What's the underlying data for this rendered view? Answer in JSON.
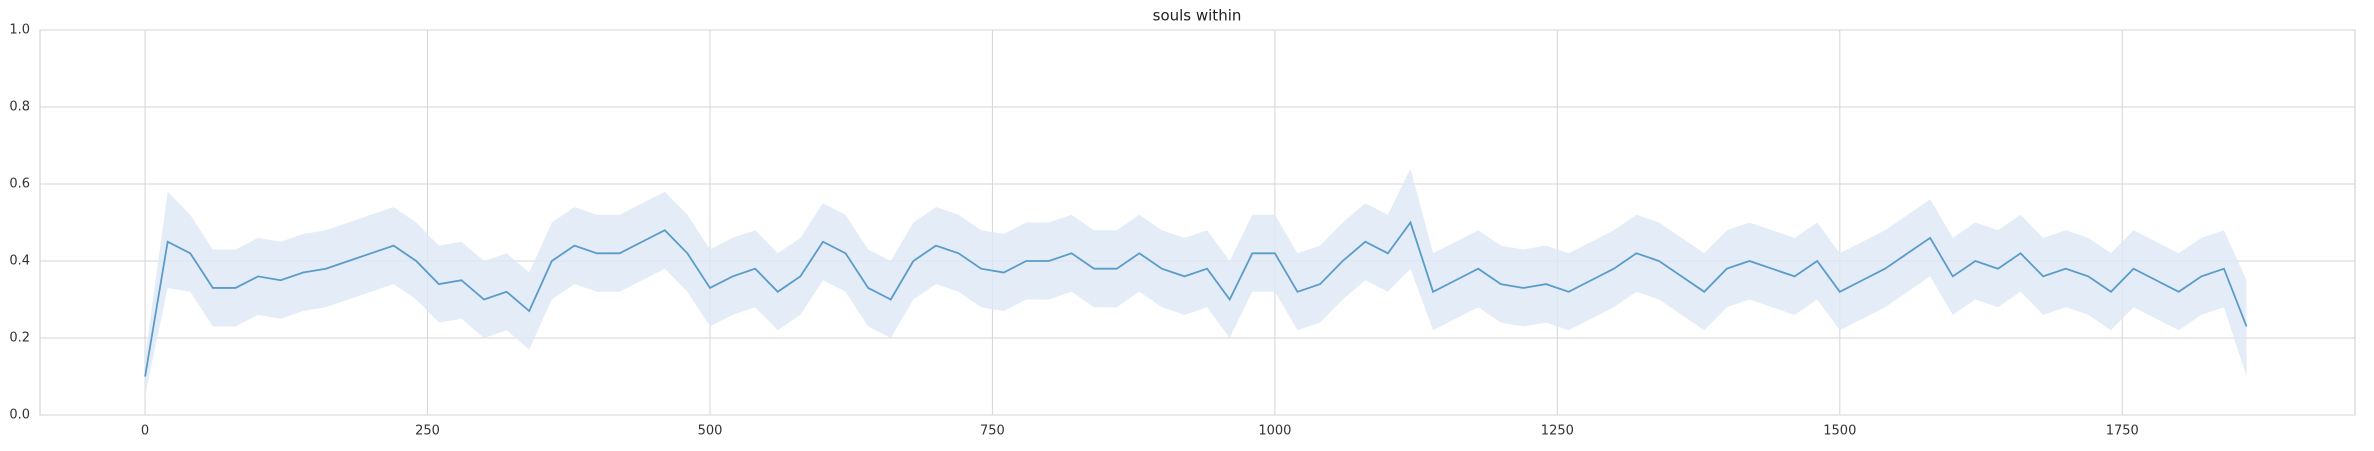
{
  "chart_data": {
    "type": "line",
    "title": "souls within",
    "x": [
      0,
      20,
      40,
      60,
      80,
      100,
      120,
      140,
      160,
      180,
      200,
      220,
      240,
      260,
      280,
      300,
      320,
      340,
      360,
      380,
      400,
      420,
      440,
      460,
      480,
      500,
      520,
      540,
      560,
      580,
      600,
      620,
      640,
      660,
      680,
      700,
      720,
      740,
      760,
      780,
      800,
      820,
      840,
      860,
      880,
      900,
      920,
      940,
      960,
      980,
      1000,
      1020,
      1040,
      1060,
      1080,
      1100,
      1120,
      1140,
      1160,
      1180,
      1200,
      1220,
      1240,
      1260,
      1280,
      1300,
      1320,
      1340,
      1360,
      1380,
      1400,
      1420,
      1440,
      1460,
      1480,
      1500,
      1520,
      1540,
      1560,
      1580,
      1600,
      1620,
      1640,
      1660,
      1680,
      1700,
      1720,
      1740,
      1760,
      1780,
      1800,
      1820,
      1840,
      1860
    ],
    "values": [
      0.1,
      0.45,
      0.42,
      0.33,
      0.33,
      0.36,
      0.35,
      0.37,
      0.38,
      0.4,
      0.42,
      0.44,
      0.4,
      0.34,
      0.35,
      0.3,
      0.32,
      0.27,
      0.4,
      0.44,
      0.42,
      0.42,
      0.45,
      0.48,
      0.42,
      0.33,
      0.36,
      0.38,
      0.32,
      0.36,
      0.45,
      0.42,
      0.33,
      0.3,
      0.4,
      0.44,
      0.42,
      0.38,
      0.37,
      0.4,
      0.4,
      0.42,
      0.38,
      0.38,
      0.42,
      0.38,
      0.36,
      0.38,
      0.3,
      0.42,
      0.42,
      0.32,
      0.34,
      0.4,
      0.45,
      0.42,
      0.5,
      0.32,
      0.35,
      0.38,
      0.34,
      0.33,
      0.34,
      0.32,
      0.35,
      0.38,
      0.42,
      0.4,
      0.36,
      0.32,
      0.38,
      0.4,
      0.38,
      0.36,
      0.4,
      0.32,
      0.35,
      0.38,
      0.42,
      0.46,
      0.36,
      0.4,
      0.38,
      0.42,
      0.36,
      0.38,
      0.36,
      0.32,
      0.38,
      0.35,
      0.32,
      0.36,
      0.38,
      0.23
    ],
    "lower": [
      0.05,
      0.33,
      0.32,
      0.23,
      0.23,
      0.26,
      0.25,
      0.27,
      0.28,
      0.3,
      0.32,
      0.34,
      0.3,
      0.24,
      0.25,
      0.2,
      0.22,
      0.17,
      0.3,
      0.34,
      0.32,
      0.32,
      0.35,
      0.38,
      0.32,
      0.23,
      0.26,
      0.28,
      0.22,
      0.26,
      0.35,
      0.32,
      0.23,
      0.2,
      0.3,
      0.34,
      0.32,
      0.28,
      0.27,
      0.3,
      0.3,
      0.32,
      0.28,
      0.28,
      0.32,
      0.28,
      0.26,
      0.28,
      0.2,
      0.32,
      0.32,
      0.22,
      0.24,
      0.3,
      0.35,
      0.32,
      0.38,
      0.22,
      0.25,
      0.28,
      0.24,
      0.23,
      0.24,
      0.22,
      0.25,
      0.28,
      0.32,
      0.3,
      0.26,
      0.22,
      0.28,
      0.3,
      0.28,
      0.26,
      0.3,
      0.22,
      0.25,
      0.28,
      0.32,
      0.36,
      0.26,
      0.3,
      0.28,
      0.32,
      0.26,
      0.28,
      0.26,
      0.22,
      0.28,
      0.25,
      0.22,
      0.26,
      0.28,
      0.1
    ],
    "upper": [
      0.15,
      0.58,
      0.52,
      0.43,
      0.43,
      0.46,
      0.45,
      0.47,
      0.48,
      0.5,
      0.52,
      0.54,
      0.5,
      0.44,
      0.45,
      0.4,
      0.42,
      0.37,
      0.5,
      0.54,
      0.52,
      0.52,
      0.55,
      0.58,
      0.52,
      0.43,
      0.46,
      0.48,
      0.42,
      0.46,
      0.55,
      0.52,
      0.43,
      0.4,
      0.5,
      0.54,
      0.52,
      0.48,
      0.47,
      0.5,
      0.5,
      0.52,
      0.48,
      0.48,
      0.52,
      0.48,
      0.46,
      0.48,
      0.4,
      0.52,
      0.52,
      0.42,
      0.44,
      0.5,
      0.55,
      0.52,
      0.64,
      0.42,
      0.45,
      0.48,
      0.44,
      0.43,
      0.44,
      0.42,
      0.45,
      0.48,
      0.52,
      0.5,
      0.46,
      0.42,
      0.48,
      0.5,
      0.48,
      0.46,
      0.5,
      0.42,
      0.45,
      0.48,
      0.52,
      0.56,
      0.46,
      0.5,
      0.48,
      0.52,
      0.46,
      0.48,
      0.46,
      0.42,
      0.48,
      0.45,
      0.42,
      0.46,
      0.48,
      0.35
    ],
    "color": "#5a9bc9",
    "band_color": "#dde9f5",
    "xlim": [
      -93,
      1956
    ],
    "ylim": [
      0,
      1
    ],
    "xticks": [
      0,
      250,
      500,
      750,
      1000,
      1250,
      1500,
      1750
    ],
    "yticks": [
      {
        "value": 0,
        "label": "0.0"
      },
      0.2,
      0.4,
      0.6,
      0.8,
      {
        "value": 1,
        "label": "1.0"
      }
    ],
    "grid": true
  }
}
